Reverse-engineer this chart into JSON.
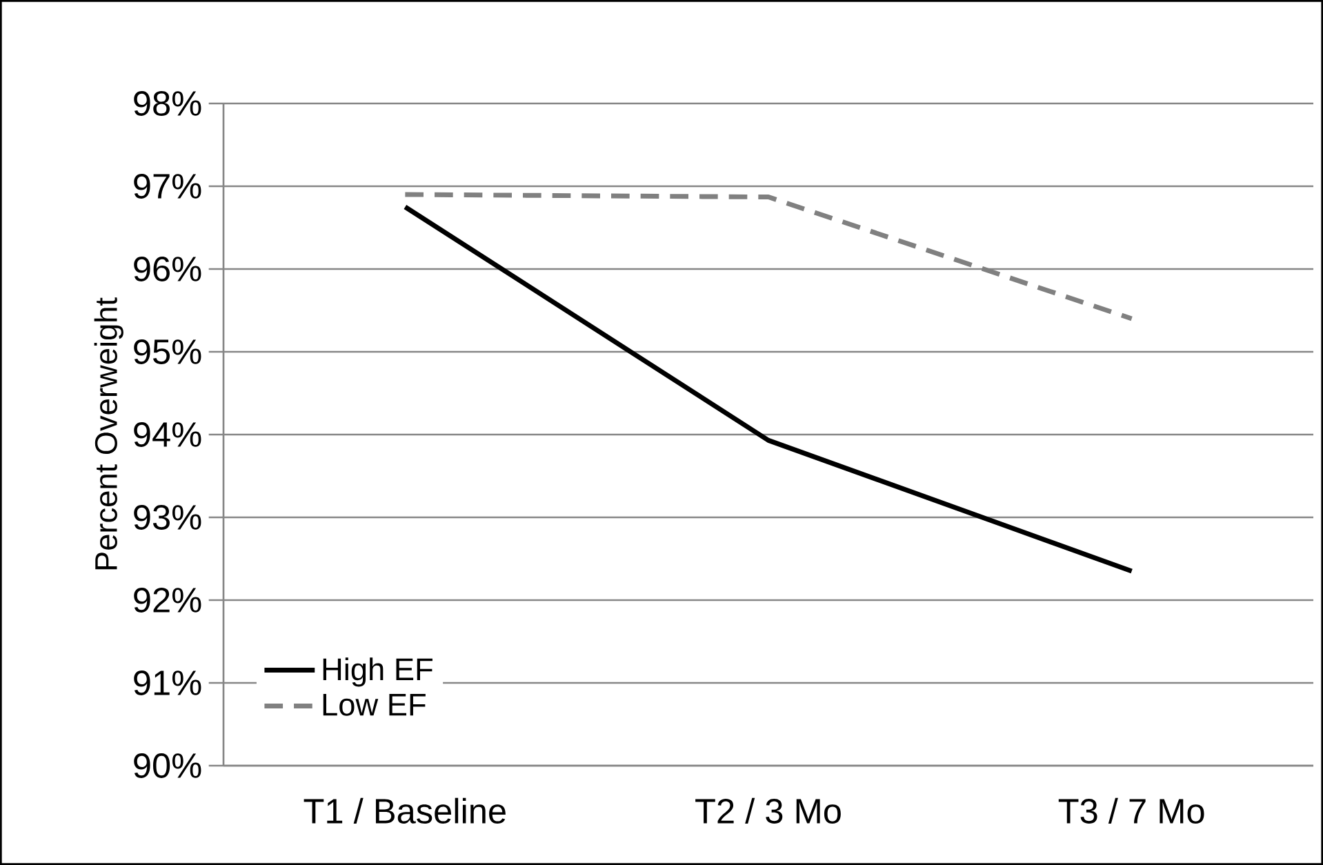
{
  "chart_data": {
    "type": "line",
    "ylabel": "Percent Overweight",
    "categories": [
      "T1 / Baseline",
      "T2 / 3 Mo",
      "T3 / 7 Mo"
    ],
    "series": [
      {
        "name": "High EF",
        "color": "#000000",
        "line_style": "solid",
        "values": [
          96.75,
          93.93,
          92.35
        ]
      },
      {
        "name": "Low EF",
        "color": "#808080",
        "line_style": "dashed",
        "values": [
          96.9,
          96.87,
          95.4
        ]
      }
    ],
    "ylim": [
      90,
      98
    ],
    "yticks": [
      {
        "value": 90,
        "label": "90%"
      },
      {
        "value": 91,
        "label": "91%"
      },
      {
        "value": 92,
        "label": "92%"
      },
      {
        "value": 93,
        "label": "93%"
      },
      {
        "value": 94,
        "label": "94%"
      },
      {
        "value": 95,
        "label": "95%"
      },
      {
        "value": 96,
        "label": "96%"
      },
      {
        "value": 97,
        "label": "97%"
      },
      {
        "value": 98,
        "label": "98%"
      }
    ],
    "grid": "y",
    "legend": "bottom left",
    "marker": "none"
  }
}
